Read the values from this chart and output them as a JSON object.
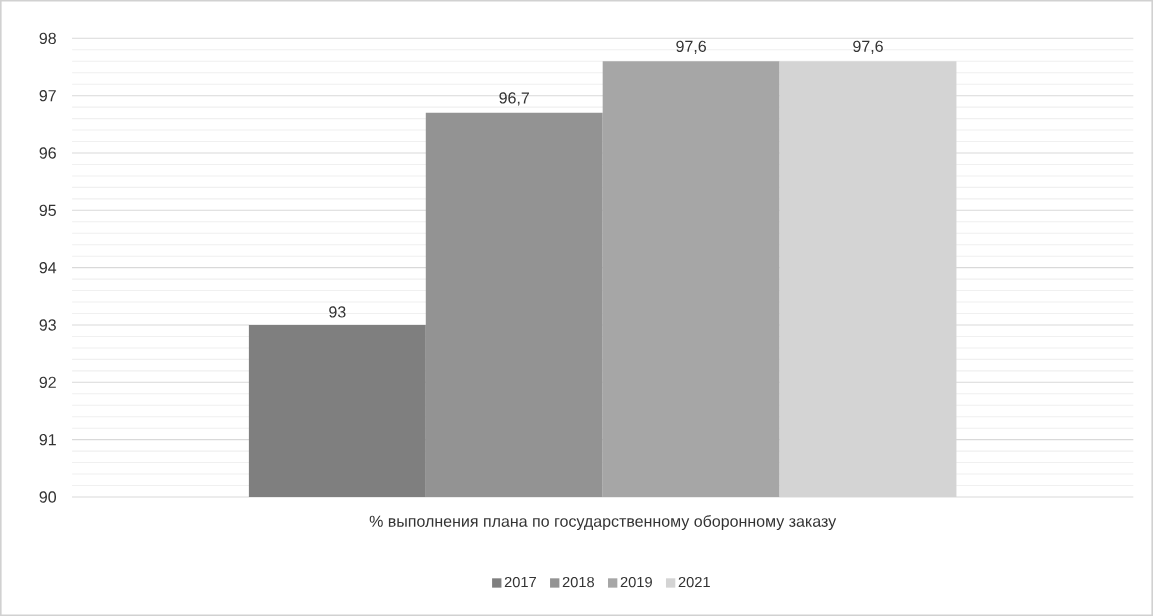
{
  "chart_data": {
    "type": "bar",
    "categories": [
      "% выполнения плана по государственному оборонному заказу"
    ],
    "series": [
      {
        "name": "2017",
        "color": "#7f7f7f",
        "values": [
          93
        ],
        "value_labels": [
          "93"
        ]
      },
      {
        "name": "2018",
        "color": "#939393",
        "values": [
          96.7
        ],
        "value_labels": [
          "96,7"
        ]
      },
      {
        "name": "2019",
        "color": "#a6a6a6",
        "values": [
          97.6
        ],
        "value_labels": [
          "97,6"
        ]
      },
      {
        "name": "2021",
        "color": "#d4d4d4",
        "values": [
          97.6
        ],
        "value_labels": [
          "97,6"
        ]
      }
    ],
    "ylim": [
      90,
      98
    ],
    "yticks": [
      90,
      91,
      92,
      93,
      94,
      95,
      96,
      97,
      98
    ],
    "grid": "y",
    "legend": "bottom"
  }
}
